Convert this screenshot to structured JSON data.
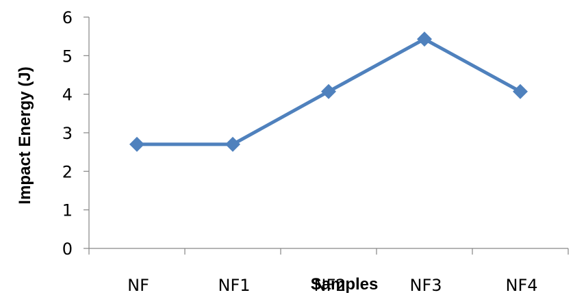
{
  "chart_data": {
    "type": "line",
    "title": "",
    "xlabel": "Samples",
    "ylabel": "Impact Energy (J)",
    "categories": [
      "NF",
      "NF1",
      "NF2",
      "NF3",
      "NF4"
    ],
    "series": [
      {
        "values": [
          2.7,
          2.7,
          4.07,
          5.43,
          4.07
        ]
      }
    ],
    "ylim": [
      0,
      6
    ],
    "yticks": [
      "0",
      "1",
      "2",
      "3",
      "4",
      "5",
      "6"
    ],
    "grid": false,
    "legend": "none",
    "line_color": "#4F81BD",
    "marker": "diamond"
  }
}
